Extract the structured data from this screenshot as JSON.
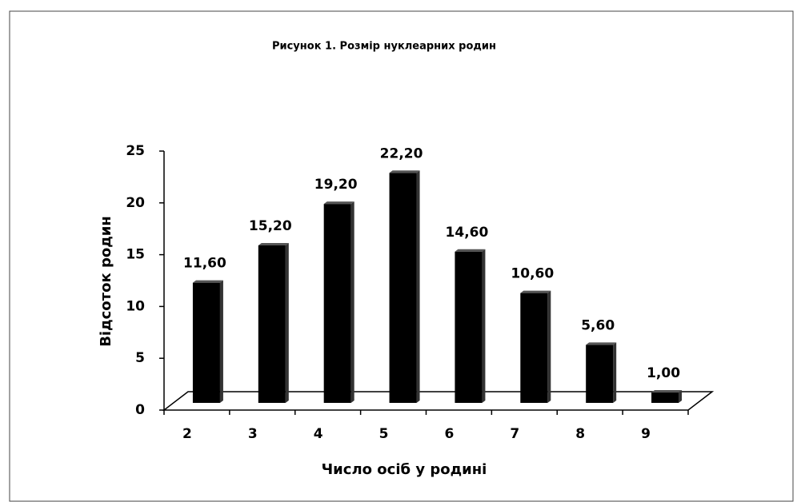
{
  "chart_data": {
    "type": "bar",
    "title": "Рисунок 1. Розмір нуклеарних родин",
    "x_label": "Число осіб у родині",
    "y_label": "Відсоток родин",
    "categories": [
      "2",
      "3",
      "4",
      "5",
      "6",
      "7",
      "8",
      "9"
    ],
    "values": [
      11.6,
      15.2,
      19.2,
      22.2,
      14.6,
      10.6,
      5.6,
      1.0
    ],
    "value_labels": [
      "11,60",
      "15,20",
      "19,20",
      "22,20",
      "14,60",
      "10,60",
      "5,60",
      "1,00"
    ],
    "color": "#000000",
    "ylim": [
      0,
      25
    ],
    "yticks": [
      0,
      5,
      10,
      15,
      20,
      25
    ],
    "grid": false
  }
}
